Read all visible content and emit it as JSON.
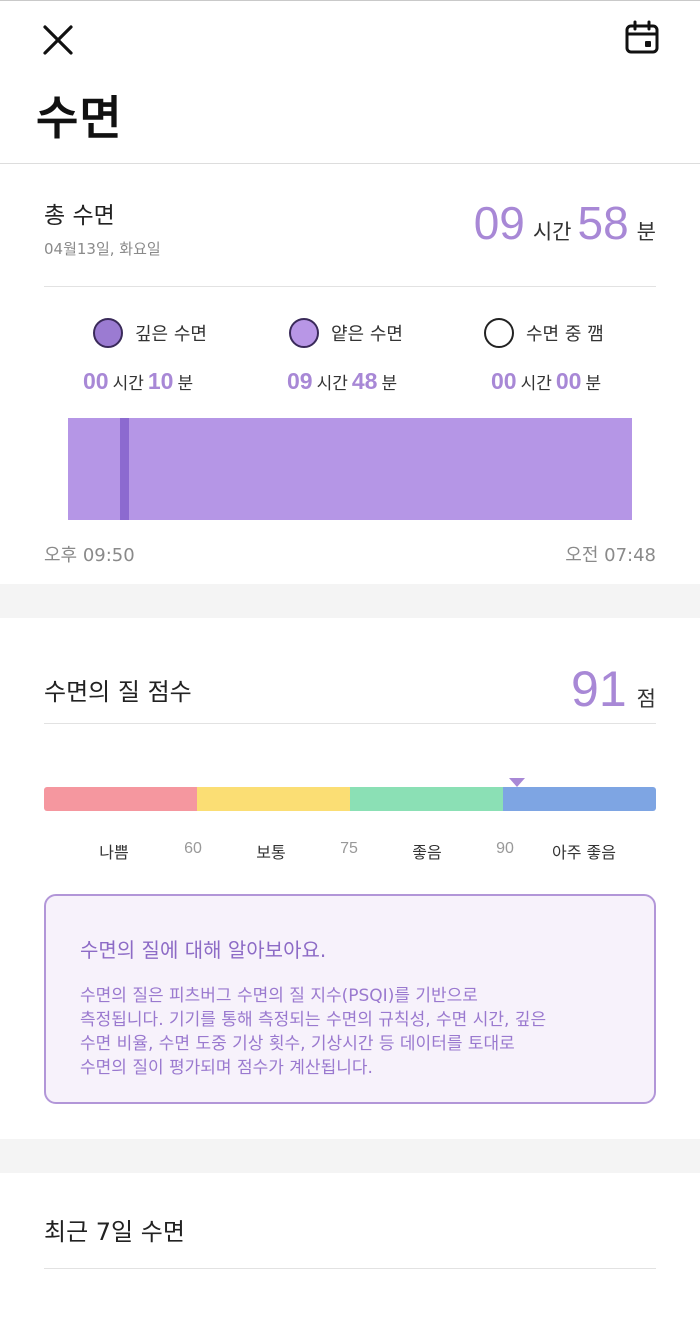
{
  "header": {
    "title": "수면",
    "close_icon": "close-icon",
    "calendar_icon": "calendar-icon"
  },
  "total_sleep": {
    "label": "총 수면",
    "date": "04월13일, 화요일",
    "hours": "09",
    "hours_unit": "시간",
    "minutes": "58",
    "minutes_unit": "분"
  },
  "legend": {
    "deep": {
      "label": "깊은 수면",
      "hours": "00",
      "minutes": "10",
      "color": "#9b7bd2"
    },
    "light": {
      "label": "얕은 수면",
      "hours": "09",
      "minutes": "48",
      "color": "#b896e6"
    },
    "awake": {
      "label": "수면 중 깸",
      "hours": "00",
      "minutes": "00",
      "color": "#ffffff"
    },
    "hours_unit": "시간",
    "minutes_unit": "분"
  },
  "timeline": {
    "start": "오후 09:50",
    "end": "오전 07:48"
  },
  "quality": {
    "label": "수면의 질 점수",
    "score": "91",
    "score_unit": "점",
    "scale": {
      "bad": "나쁨",
      "t60": "60",
      "normal": "보통",
      "t75": "75",
      "good": "좋음",
      "t90": "90",
      "great": "아주 좋음"
    },
    "colors": {
      "bad": "#f5979f",
      "normal": "#fbde74",
      "good": "#8be0b5",
      "great": "#7ea5e3"
    }
  },
  "info": {
    "title": "수면의 질에 대해 알아보아요.",
    "line1": "수면의 질은 피츠버그 수면의 질 지수(PSQI)를 기반으로",
    "line2": "측정됩니다. 기기를 통해 측정되는 수면의 규칙성, 수면 시간, 깊은",
    "line3": "수면 비율, 수면 도중 기상 횟수, 기상시간 등 데이터를 토대로",
    "line4": "수면의 질이 평가되며 점수가 계산됩니다."
  },
  "recent": {
    "label": "최근 7일 수면"
  },
  "theme": {
    "accent": "#a888d6"
  }
}
